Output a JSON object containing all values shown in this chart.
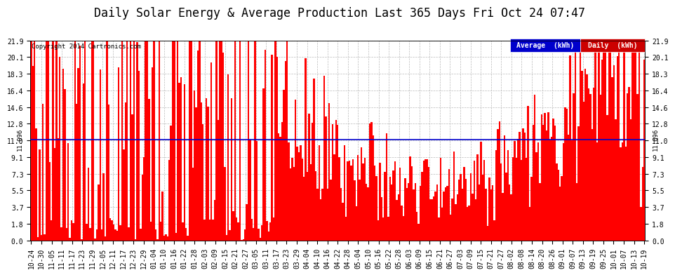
{
  "title": "Daily Solar Energy & Average Production Last 365 Days Fri Oct 24 07:47",
  "copyright": "Copyright 2014 Cartronics.com",
  "average_value": 11.096,
  "average_label": "11.096",
  "yticks": [
    0.0,
    1.8,
    3.7,
    5.5,
    7.3,
    9.1,
    11.0,
    12.8,
    14.6,
    16.4,
    18.3,
    20.1,
    21.9
  ],
  "ylim": [
    0.0,
    21.9
  ],
  "bar_color": "#FF0000",
  "average_line_color": "#0000CC",
  "background_color": "#FFFFFF",
  "plot_bg_color": "#FFFFFF",
  "grid_color": "#BBBBBB",
  "title_fontsize": 12,
  "tick_fontsize": 7,
  "n_days": 365,
  "legend_avg_bg": "#0000CC",
  "legend_daily_bg": "#CC0000",
  "legend_avg_text": "Average  (kWh)",
  "legend_daily_text": "Daily  (kWh)",
  "xtick_labels": [
    "10-24",
    "10-30",
    "11-05",
    "11-11",
    "11-17",
    "11-23",
    "11-29",
    "12-05",
    "12-11",
    "12-17",
    "12-23",
    "12-29",
    "01-04",
    "01-10",
    "01-16",
    "01-22",
    "01-28",
    "02-03",
    "02-09",
    "02-15",
    "02-21",
    "02-27",
    "03-05",
    "03-11",
    "03-17",
    "03-23",
    "03-29",
    "04-04",
    "04-10",
    "04-16",
    "04-22",
    "04-28",
    "05-04",
    "05-10",
    "05-16",
    "05-22",
    "05-28",
    "06-03",
    "06-09",
    "06-15",
    "06-21",
    "06-27",
    "07-03",
    "07-09",
    "07-15",
    "07-21",
    "07-27",
    "08-02",
    "08-08",
    "08-14",
    "08-20",
    "08-26",
    "09-01",
    "09-07",
    "09-13",
    "09-19",
    "09-25",
    "10-01",
    "10-07",
    "10-13",
    "10-19"
  ]
}
